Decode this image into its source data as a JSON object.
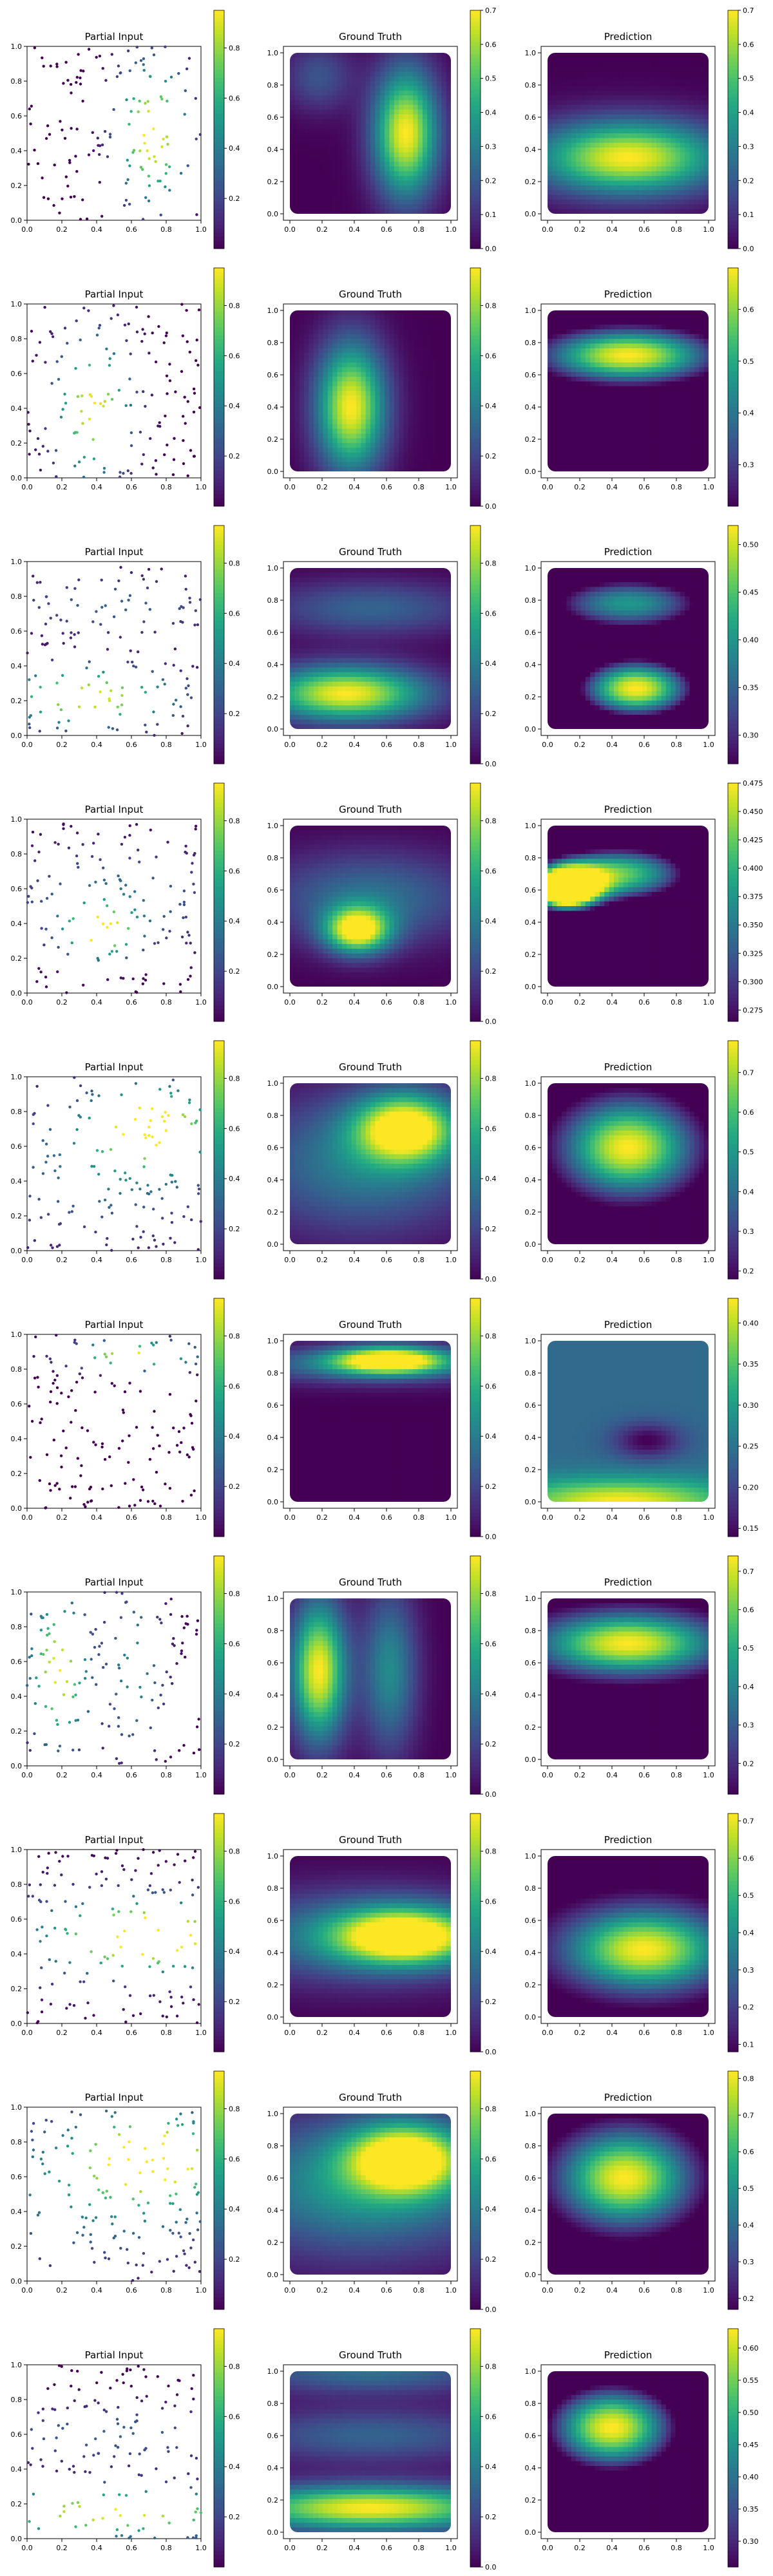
{
  "figure": {
    "column_titles": [
      "Partial Input",
      "Ground Truth",
      "Prediction"
    ]
  },
  "colormap": [
    "#440154",
    "#482475",
    "#414487",
    "#355f8d",
    "#2a788e",
    "#21918c",
    "#22a884",
    "#44bf70",
    "#7ad151",
    "#bddf26",
    "#fde725"
  ],
  "axis_ticks": [
    0.0,
    0.2,
    0.4,
    0.6,
    0.8,
    1.0
  ],
  "axis_tick_labels": [
    "0.0",
    "0.2",
    "0.4",
    "0.6",
    "0.8",
    "1.0"
  ],
  "chart_data": [
    {
      "type": "grid-of-panels",
      "row": 1,
      "partial_input": {
        "type": "scatter",
        "n_points": 150,
        "ylim": [
          0,
          1
        ],
        "xlim": [
          0,
          1
        ],
        "colorbar_ticks": [
          "0.2",
          "0.4",
          "0.6",
          "0.8"
        ],
        "clim": [
          0,
          0.95
        ],
        "field": {
          "kind": "y-gauss",
          "centers": [
            {
              "x": 0.72,
              "y": 0.5,
              "sx": 0.14,
              "sy": 0.28,
              "a": 1.0
            }
          ]
        }
      },
      "ground_truth": {
        "type": "heatmap",
        "clim": [
          0,
          0.7
        ],
        "colorbar_ticks": [
          "0.0",
          "0.1",
          "0.2",
          "0.3",
          "0.4",
          "0.5",
          "0.6",
          "0.7"
        ],
        "centers": [
          {
            "x": 0.72,
            "y": 0.5,
            "sx": 0.14,
            "sy": 0.28,
            "a": 0.7
          },
          {
            "x": 0.18,
            "y": 0.85,
            "sx": 0.15,
            "sy": 0.15,
            "a": 0.18
          }
        ]
      },
      "prediction": {
        "type": "heatmap",
        "clim": [
          0,
          0.7
        ],
        "colorbar_ticks": [
          "0.0",
          "0.1",
          "0.2",
          "0.3",
          "0.4",
          "0.5",
          "0.6",
          "0.7"
        ],
        "centers": [
          {
            "x": 0.5,
            "y": 0.35,
            "sx": 0.4,
            "sy": 0.16,
            "a": 0.7
          }
        ]
      }
    },
    {
      "type": "grid-of-panels",
      "row": 2,
      "partial_input": {
        "type": "scatter",
        "n_points": 150,
        "clim": [
          0,
          0.95
        ],
        "colorbar_ticks": [
          "0.2",
          "0.4",
          "0.6",
          "0.8"
        ],
        "field": {
          "centers": [
            {
              "x": 0.38,
              "y": 0.4,
              "sx": 0.15,
              "sy": 0.28,
              "a": 0.95
            }
          ]
        }
      },
      "ground_truth": {
        "type": "heatmap",
        "clim": [
          0,
          0.95
        ],
        "colorbar_ticks": [
          "0.0",
          "0.2",
          "0.4",
          "0.6",
          "0.8"
        ],
        "centers": [
          {
            "x": 0.38,
            "y": 0.4,
            "sx": 0.15,
            "sy": 0.28,
            "a": 0.95
          }
        ]
      },
      "prediction": {
        "type": "heatmap",
        "clim": [
          0.22,
          0.68
        ],
        "colorbar_ticks": [
          "0.3",
          "0.4",
          "0.5",
          "0.6"
        ],
        "centers": [
          {
            "x": 0.5,
            "y": 0.72,
            "sx": 0.4,
            "sy": 0.13,
            "a": 0.68
          }
        ]
      }
    },
    {
      "type": "grid-of-panels",
      "row": 3,
      "partial_input": {
        "type": "scatter",
        "n_points": 150,
        "clim": [
          0,
          0.95
        ],
        "colorbar_ticks": [
          "0.2",
          "0.4",
          "0.6",
          "0.8"
        ],
        "field": {
          "centers": [
            {
              "x": 0.35,
              "y": 0.22,
              "sx": 0.35,
              "sy": 0.12,
              "a": 0.95
            },
            {
              "x": 0.5,
              "y": 0.75,
              "sx": 0.45,
              "sy": 0.12,
              "a": 0.3
            }
          ]
        }
      },
      "ground_truth": {
        "type": "heatmap",
        "clim": [
          0,
          0.95
        ],
        "colorbar_ticks": [
          "0.0",
          "0.2",
          "0.4",
          "0.6",
          "0.8"
        ],
        "centers": [
          {
            "x": 0.35,
            "y": 0.22,
            "sx": 0.35,
            "sy": 0.12,
            "a": 0.95
          },
          {
            "x": 0.5,
            "y": 0.75,
            "sx": 0.45,
            "sy": 0.12,
            "a": 0.3
          }
        ]
      },
      "prediction": {
        "type": "heatmap",
        "clim": [
          0.27,
          0.52
        ],
        "colorbar_ticks": [
          "0.30",
          "0.35",
          "0.40",
          "0.45",
          "0.50"
        ],
        "centers": [
          {
            "x": 0.55,
            "y": 0.25,
            "sx": 0.3,
            "sy": 0.15,
            "a": 0.52
          },
          {
            "x": 0.5,
            "y": 0.78,
            "sx": 0.45,
            "sy": 0.15,
            "a": 0.4
          }
        ]
      }
    },
    {
      "type": "grid-of-panels",
      "row": 4,
      "partial_input": {
        "type": "scatter",
        "n_points": 150,
        "clim": [
          0,
          0.95
        ],
        "colorbar_ticks": [
          "0.2",
          "0.4",
          "0.6",
          "0.8"
        ],
        "field": {
          "centers": [
            {
              "x": 0.42,
              "y": 0.35,
              "sx": 0.14,
              "sy": 0.1,
              "a": 0.95
            },
            {
              "x": 0.5,
              "y": 0.55,
              "sx": 0.45,
              "sy": 0.2,
              "a": 0.35
            }
          ]
        }
      },
      "ground_truth": {
        "type": "heatmap",
        "clim": [
          0,
          0.95
        ],
        "colorbar_ticks": [
          "0.0",
          "0.2",
          "0.4",
          "0.6",
          "0.8"
        ],
        "centers": [
          {
            "x": 0.42,
            "y": 0.35,
            "sx": 0.14,
            "sy": 0.1,
            "a": 0.95
          },
          {
            "x": 0.5,
            "y": 0.55,
            "sx": 0.45,
            "sy": 0.2,
            "a": 0.35
          }
        ]
      },
      "prediction": {
        "type": "heatmap",
        "clim": [
          0.265,
          0.475
        ],
        "colorbar_ticks": [
          "0.275",
          "0.300",
          "0.325",
          "0.350",
          "0.375",
          "0.400",
          "0.425",
          "0.450",
          "0.475"
        ],
        "centers": [
          {
            "x": 0.1,
            "y": 0.6,
            "sx": 0.15,
            "sy": 0.1,
            "a": 0.475
          },
          {
            "x": 0.45,
            "y": 0.7,
            "sx": 0.4,
            "sy": 0.16,
            "a": 0.42
          }
        ]
      }
    },
    {
      "type": "grid-of-panels",
      "row": 5,
      "partial_input": {
        "type": "scatter",
        "n_points": 150,
        "clim": [
          0,
          0.95
        ],
        "colorbar_ticks": [
          "0.2",
          "0.4",
          "0.6",
          "0.8"
        ],
        "field": {
          "centers": [
            {
              "x": 0.72,
              "y": 0.72,
              "sx": 0.22,
              "sy": 0.15,
              "a": 0.95
            },
            {
              "x": 0.45,
              "y": 0.5,
              "sx": 0.5,
              "sy": 0.3,
              "a": 0.4
            }
          ]
        }
      },
      "ground_truth": {
        "type": "heatmap",
        "clim": [
          0,
          0.95
        ],
        "colorbar_ticks": [
          "0.0",
          "0.2",
          "0.4",
          "0.6",
          "0.8"
        ],
        "centers": [
          {
            "x": 0.72,
            "y": 0.72,
            "sx": 0.22,
            "sy": 0.15,
            "a": 0.95
          },
          {
            "x": 0.45,
            "y": 0.5,
            "sx": 0.5,
            "sy": 0.3,
            "a": 0.4
          }
        ]
      },
      "prediction": {
        "type": "heatmap",
        "clim": [
          0.18,
          0.78
        ],
        "colorbar_ticks": [
          "0.2",
          "0.3",
          "0.4",
          "0.5",
          "0.6",
          "0.7"
        ],
        "centers": [
          {
            "x": 0.5,
            "y": 0.6,
            "sx": 0.3,
            "sy": 0.22,
            "a": 0.78
          }
        ]
      }
    },
    {
      "type": "grid-of-panels",
      "row": 6,
      "partial_input": {
        "type": "scatter",
        "n_points": 150,
        "clim": [
          0,
          0.95
        ],
        "colorbar_ticks": [
          "0.2",
          "0.4",
          "0.6",
          "0.8"
        ],
        "field": {
          "centers": [
            {
              "x": 0.62,
              "y": 0.88,
              "sx": 0.25,
              "sy": 0.06,
              "a": 0.95
            }
          ]
        }
      },
      "ground_truth": {
        "type": "heatmap",
        "clim": [
          0,
          0.95
        ],
        "colorbar_ticks": [
          "0.0",
          "0.2",
          "0.4",
          "0.6",
          "0.8"
        ],
        "centers": [
          {
            "x": 0.62,
            "y": 0.88,
            "sx": 0.25,
            "sy": 0.06,
            "a": 0.95
          },
          {
            "x": 0.5,
            "y": 0.85,
            "sx": 0.6,
            "sy": 0.08,
            "a": 0.35
          }
        ]
      },
      "prediction": {
        "type": "heatmap",
        "clim": [
          0.14,
          0.43
        ],
        "colorbar_ticks": [
          "0.15",
          "0.20",
          "0.25",
          "0.30",
          "0.35",
          "0.40"
        ],
        "base": 0.24,
        "centers": [
          {
            "x": 0.45,
            "y": 0.0,
            "sx": 0.5,
            "sy": 0.1,
            "a": 0.19
          }
        ],
        "negative": [
          {
            "x": 0.62,
            "y": 0.38,
            "sx": 0.15,
            "sy": 0.08,
            "a": 0.1
          }
        ]
      }
    },
    {
      "type": "grid-of-panels",
      "row": 7,
      "partial_input": {
        "type": "scatter",
        "n_points": 150,
        "clim": [
          0,
          0.95
        ],
        "colorbar_ticks": [
          "0.2",
          "0.4",
          "0.6",
          "0.8"
        ],
        "field": {
          "centers": [
            {
              "x": 0.18,
              "y": 0.55,
              "sx": 0.12,
              "sy": 0.3,
              "a": 0.95
            },
            {
              "x": 0.62,
              "y": 0.55,
              "sx": 0.12,
              "sy": 0.35,
              "a": 0.45
            }
          ]
        }
      },
      "ground_truth": {
        "type": "heatmap",
        "clim": [
          0,
          0.95
        ],
        "colorbar_ticks": [
          "0.0",
          "0.2",
          "0.4",
          "0.6",
          "0.8"
        ],
        "centers": [
          {
            "x": 0.18,
            "y": 0.55,
            "sx": 0.12,
            "sy": 0.3,
            "a": 0.95
          },
          {
            "x": 0.62,
            "y": 0.55,
            "sx": 0.12,
            "sy": 0.35,
            "a": 0.45
          }
        ]
      },
      "prediction": {
        "type": "heatmap",
        "clim": [
          0.12,
          0.74
        ],
        "colorbar_ticks": [
          "0.2",
          "0.3",
          "0.4",
          "0.5",
          "0.6",
          "0.7"
        ],
        "centers": [
          {
            "x": 0.5,
            "y": 0.72,
            "sx": 0.4,
            "sy": 0.14,
            "a": 0.74
          }
        ]
      }
    },
    {
      "type": "grid-of-panels",
      "row": 8,
      "partial_input": {
        "type": "scatter",
        "n_points": 150,
        "clim": [
          0,
          0.95
        ],
        "colorbar_ticks": [
          "0.2",
          "0.4",
          "0.6",
          "0.8"
        ],
        "field": {
          "centers": [
            {
              "x": 0.72,
              "y": 0.5,
              "sx": 0.3,
              "sy": 0.12,
              "a": 0.95
            },
            {
              "x": 0.45,
              "y": 0.5,
              "sx": 0.6,
              "sy": 0.2,
              "a": 0.4
            }
          ]
        }
      },
      "ground_truth": {
        "type": "heatmap",
        "clim": [
          0,
          0.95
        ],
        "colorbar_ticks": [
          "0.0",
          "0.2",
          "0.4",
          "0.6",
          "0.8"
        ],
        "centers": [
          {
            "x": 0.72,
            "y": 0.5,
            "sx": 0.3,
            "sy": 0.12,
            "a": 0.95
          },
          {
            "x": 0.45,
            "y": 0.5,
            "sx": 0.6,
            "sy": 0.2,
            "a": 0.4
          }
        ]
      },
      "prediction": {
        "type": "heatmap",
        "clim": [
          0.08,
          0.72
        ],
        "colorbar_ticks": [
          "0.1",
          "0.2",
          "0.3",
          "0.4",
          "0.5",
          "0.6",
          "0.7"
        ],
        "centers": [
          {
            "x": 0.6,
            "y": 0.42,
            "sx": 0.35,
            "sy": 0.18,
            "a": 0.72
          }
        ]
      }
    },
    {
      "type": "grid-of-panels",
      "row": 9,
      "partial_input": {
        "type": "scatter",
        "n_points": 150,
        "clim": [
          0,
          0.95
        ],
        "colorbar_ticks": [
          "0.2",
          "0.4",
          "0.6",
          "0.8"
        ],
        "field": {
          "centers": [
            {
              "x": 0.72,
              "y": 0.72,
              "sx": 0.25,
              "sy": 0.15,
              "a": 0.95
            },
            {
              "x": 0.45,
              "y": 0.55,
              "sx": 0.6,
              "sy": 0.3,
              "a": 0.5
            }
          ]
        }
      },
      "ground_truth": {
        "type": "heatmap",
        "clim": [
          0,
          0.95
        ],
        "colorbar_ticks": [
          "0.0",
          "0.2",
          "0.4",
          "0.6",
          "0.8"
        ],
        "centers": [
          {
            "x": 0.72,
            "y": 0.72,
            "sx": 0.25,
            "sy": 0.15,
            "a": 0.95
          },
          {
            "x": 0.45,
            "y": 0.55,
            "sx": 0.6,
            "sy": 0.3,
            "a": 0.5
          }
        ]
      },
      "prediction": {
        "type": "heatmap",
        "clim": [
          0.17,
          0.82
        ],
        "colorbar_ticks": [
          "0.2",
          "0.3",
          "0.4",
          "0.5",
          "0.6",
          "0.7",
          "0.8"
        ],
        "centers": [
          {
            "x": 0.48,
            "y": 0.6,
            "sx": 0.3,
            "sy": 0.22,
            "a": 0.82
          }
        ]
      }
    },
    {
      "type": "grid-of-panels",
      "row": 10,
      "partial_input": {
        "type": "scatter",
        "n_points": 150,
        "clim": [
          0,
          0.95
        ],
        "colorbar_ticks": [
          "0.2",
          "0.4",
          "0.6",
          "0.8"
        ],
        "field": {
          "centers": [
            {
              "x": 0.5,
              "y": 0.15,
              "sx": 0.6,
              "sy": 0.1,
              "a": 0.95
            },
            {
              "x": 0.5,
              "y": 0.6,
              "sx": 0.6,
              "sy": 0.12,
              "a": 0.3
            }
          ]
        }
      },
      "ground_truth": {
        "type": "heatmap",
        "clim": [
          0,
          0.95
        ],
        "colorbar_ticks": [
          "0.0",
          "0.2",
          "0.4",
          "0.6",
          "0.8"
        ],
        "centers": [
          {
            "x": 0.5,
            "y": 0.15,
            "sx": 0.6,
            "sy": 0.1,
            "a": 0.95
          },
          {
            "x": 0.5,
            "y": 0.6,
            "sx": 0.6,
            "sy": 0.12,
            "a": 0.3
          },
          {
            "x": 0.5,
            "y": 1.0,
            "sx": 0.6,
            "sy": 0.1,
            "a": 0.35
          }
        ]
      },
      "prediction": {
        "type": "heatmap",
        "clim": [
          0.26,
          0.63
        ],
        "colorbar_ticks": [
          "0.30",
          "0.35",
          "0.40",
          "0.45",
          "0.50",
          "0.55",
          "0.60"
        ],
        "centers": [
          {
            "x": 0.4,
            "y": 0.65,
            "sx": 0.3,
            "sy": 0.2,
            "a": 0.63
          }
        ]
      }
    }
  ]
}
